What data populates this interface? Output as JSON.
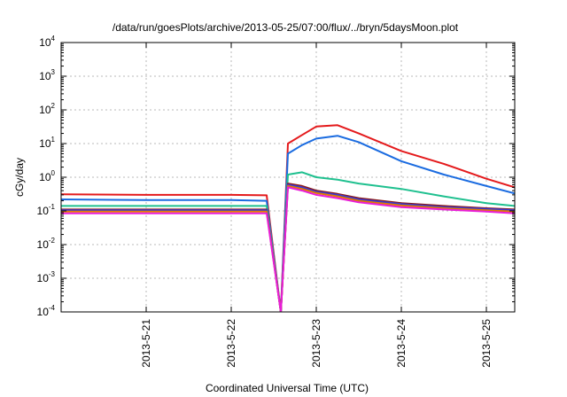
{
  "chart_data": {
    "type": "line",
    "title": "/data/run/goesPlots/archive/2013-05-25/07:00/flux/../bryn/5daysMoon.plot",
    "xlabel": "Coordinated Universal Time (UTC)",
    "ylabel": "cGy/day",
    "yscale": "log",
    "ylim": [
      0.0001,
      10000
    ],
    "xlim": [
      "2013-05-20T00:00",
      "2013-05-25T08:00"
    ],
    "x_ticks": [
      "2013-5-21",
      "2013-5-22",
      "2013-5-23",
      "2013-5-24",
      "2013-5-25"
    ],
    "y_ticks": [
      {
        "base": "10",
        "exp": "-4"
      },
      {
        "base": "10",
        "exp": "-3"
      },
      {
        "base": "10",
        "exp": "-2"
      },
      {
        "base": "10",
        "exp": "-1"
      },
      {
        "base": "10",
        "exp": "0"
      },
      {
        "base": "10",
        "exp": "1"
      },
      {
        "base": "10",
        "exp": "2"
      },
      {
        "base": "10",
        "exp": "3"
      },
      {
        "base": "10",
        "exp": "4"
      }
    ],
    "grid": true,
    "legend": "none",
    "series": [
      {
        "color": "#e41a1c",
        "x": [
          "2013-05-20T00:00",
          "2013-05-21T00:00",
          "2013-05-22T00:00",
          "2013-05-22T10:00",
          "2013-05-22T14:00",
          "2013-05-22T16:00",
          "2013-05-22T20:00",
          "2013-05-23T00:00",
          "2013-05-23T06:00",
          "2013-05-23T12:00",
          "2013-05-24T00:00",
          "2013-05-24T12:00",
          "2013-05-25T00:00",
          "2013-05-25T08:00"
        ],
        "y": [
          0.31,
          0.3,
          0.3,
          0.29,
          0.0001,
          10,
          18,
          32,
          35,
          20,
          6,
          2.5,
          0.9,
          0.5
        ]
      },
      {
        "color": "#1a6be0",
        "x": [
          "2013-05-20T00:00",
          "2013-05-21T00:00",
          "2013-05-22T00:00",
          "2013-05-22T10:00",
          "2013-05-22T14:00",
          "2013-05-22T16:00",
          "2013-05-22T20:00",
          "2013-05-23T00:00",
          "2013-05-23T06:00",
          "2013-05-23T12:00",
          "2013-05-24T00:00",
          "2013-05-24T12:00",
          "2013-05-25T00:00",
          "2013-05-25T08:00"
        ],
        "y": [
          0.22,
          0.21,
          0.21,
          0.2,
          0.0001,
          5,
          9,
          14,
          17,
          11,
          3,
          1.2,
          0.55,
          0.33
        ]
      },
      {
        "color": "#1fc08f",
        "x": [
          "2013-05-20T00:00",
          "2013-05-21T00:00",
          "2013-05-22T00:00",
          "2013-05-22T10:00",
          "2013-05-22T14:00",
          "2013-05-22T16:00",
          "2013-05-22T20:00",
          "2013-05-23T00:00",
          "2013-05-23T06:00",
          "2013-05-23T12:00",
          "2013-05-24T00:00",
          "2013-05-24T12:00",
          "2013-05-25T00:00",
          "2013-05-25T08:00"
        ],
        "y": [
          0.14,
          0.14,
          0.14,
          0.14,
          0.0001,
          1.2,
          1.4,
          1.0,
          0.85,
          0.65,
          0.45,
          0.27,
          0.17,
          0.14
        ]
      },
      {
        "color": "#8b1a1a",
        "x": [
          "2013-05-20T00:00",
          "2013-05-21T00:00",
          "2013-05-22T00:00",
          "2013-05-22T10:00",
          "2013-05-22T14:00",
          "2013-05-22T16:00",
          "2013-05-22T20:00",
          "2013-05-23T00:00",
          "2013-05-23T06:00",
          "2013-05-23T12:00",
          "2013-05-24T00:00",
          "2013-05-24T12:00",
          "2013-05-25T00:00",
          "2013-05-25T08:00"
        ],
        "y": [
          0.11,
          0.11,
          0.11,
          0.11,
          0.0001,
          0.65,
          0.55,
          0.4,
          0.32,
          0.24,
          0.17,
          0.14,
          0.12,
          0.11
        ]
      },
      {
        "color": "#3a3ad0",
        "x": [
          "2013-05-20T00:00",
          "2013-05-21T00:00",
          "2013-05-22T00:00",
          "2013-05-22T10:00",
          "2013-05-22T14:00",
          "2013-05-22T16:00",
          "2013-05-22T20:00",
          "2013-05-23T00:00",
          "2013-05-23T06:00",
          "2013-05-23T12:00",
          "2013-05-24T00:00",
          "2013-05-24T12:00",
          "2013-05-25T00:00",
          "2013-05-25T08:00"
        ],
        "y": [
          0.105,
          0.105,
          0.105,
          0.105,
          0.0001,
          0.6,
          0.5,
          0.37,
          0.3,
          0.22,
          0.16,
          0.13,
          0.115,
          0.105
        ]
      },
      {
        "color": "#e07b00",
        "x": [
          "2013-05-20T00:00",
          "2013-05-21T00:00",
          "2013-05-22T00:00",
          "2013-05-22T10:00",
          "2013-05-22T14:00",
          "2013-05-22T16:00",
          "2013-05-22T20:00",
          "2013-05-23T00:00",
          "2013-05-23T06:00",
          "2013-05-23T12:00",
          "2013-05-24T00:00",
          "2013-05-24T12:00",
          "2013-05-25T00:00",
          "2013-05-25T08:00"
        ],
        "y": [
          0.095,
          0.095,
          0.095,
          0.095,
          0.0001,
          0.55,
          0.45,
          0.34,
          0.27,
          0.2,
          0.145,
          0.12,
          0.105,
          0.095
        ]
      },
      {
        "color": "#e81ed8",
        "x": [
          "2013-05-20T00:00",
          "2013-05-21T00:00",
          "2013-05-22T00:00",
          "2013-05-22T10:00",
          "2013-05-22T14:00",
          "2013-05-22T16:00",
          "2013-05-22T20:00",
          "2013-05-23T00:00",
          "2013-05-23T06:00",
          "2013-05-23T12:00",
          "2013-05-24T00:00",
          "2013-05-24T12:00",
          "2013-05-25T00:00",
          "2013-05-25T08:00"
        ],
        "y": [
          0.085,
          0.085,
          0.085,
          0.085,
          0.0001,
          0.5,
          0.4,
          0.3,
          0.24,
          0.18,
          0.13,
          0.11,
          0.095,
          0.085
        ]
      }
    ]
  }
}
